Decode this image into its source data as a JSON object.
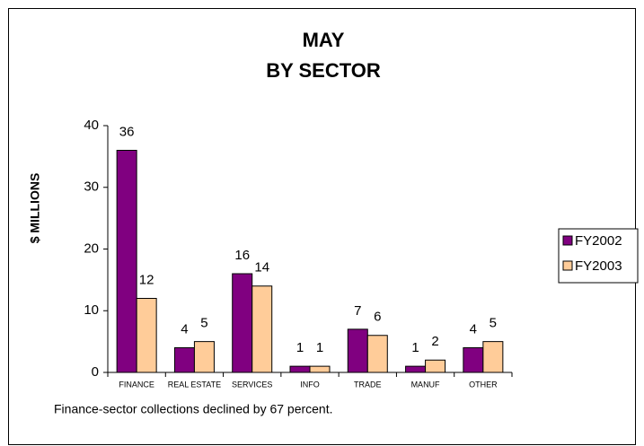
{
  "chart_data": {
    "type": "bar",
    "title": "MAY",
    "subtitle": "BY SECTOR",
    "y_label": "$ MILLIONS",
    "categories": [
      "FINANCE",
      "REAL ESTATE",
      "SERVICES",
      "INFO",
      "TRADE",
      "MANUF",
      "OTHER"
    ],
    "series": [
      {
        "name": "FY2002",
        "color": "#800080",
        "values": [
          36,
          4,
          16,
          1,
          7,
          1,
          4
        ]
      },
      {
        "name": "FY2003",
        "color": "#FFCC99",
        "values": [
          12,
          5,
          14,
          1,
          6,
          2,
          5
        ]
      }
    ],
    "ylim": [
      0,
      40
    ],
    "yticks": [
      0,
      10,
      20,
      30,
      40
    ],
    "grid": false,
    "legend": "right",
    "annotation": "Finance-sector collections declined by 67 percent."
  }
}
